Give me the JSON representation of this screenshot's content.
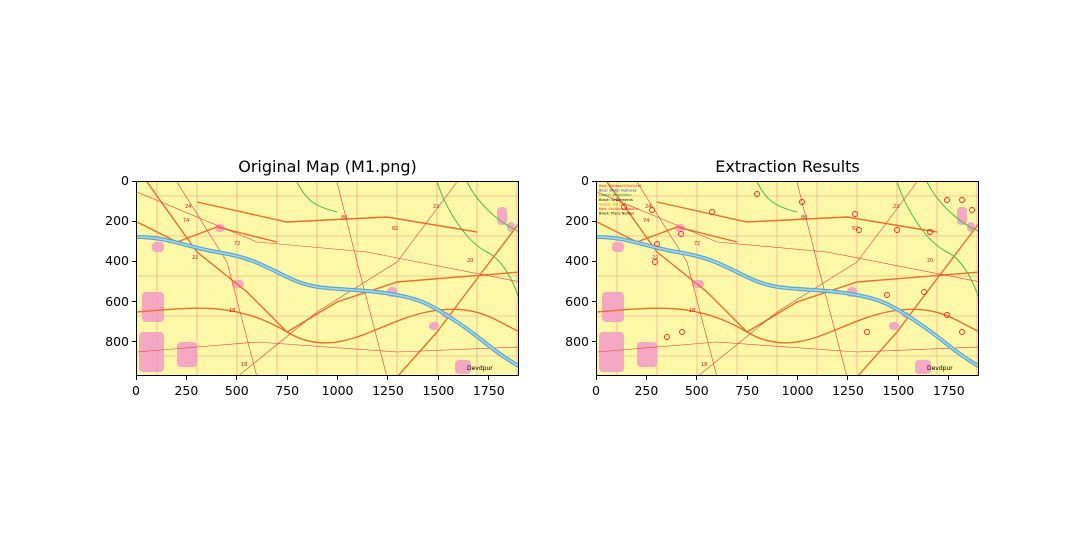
{
  "figure": {
    "panels": [
      {
        "title": "Original Map (M1.png)",
        "x_ticks": [
          "0",
          "250",
          "500",
          "750",
          "1000",
          "1250",
          "1500",
          "1750"
        ],
        "y_ticks": [
          "0",
          "200",
          "400",
          "600",
          "800"
        ],
        "legend": []
      },
      {
        "title": "Extraction Results",
        "x_ticks": [
          "0",
          "250",
          "500",
          "750",
          "1000",
          "1250",
          "1500",
          "1750"
        ],
        "y_ticks": [
          "0",
          "200",
          "400",
          "600",
          "800"
        ],
        "legend": [
          {
            "label": "Red: Transport Features",
            "color": "#ff2020"
          },
          {
            "label": "Blue: Water Features",
            "color": "#2030ff"
          },
          {
            "label": "Green: Vegetation",
            "color": "#10a010"
          },
          {
            "label": "Black: Settlements",
            "color": "#000000"
          },
          {
            "label": "Yellow: Terrain",
            "color": "#c0a000"
          },
          {
            "label": "Red: Grid/Annotations",
            "color": "#ff2020"
          },
          {
            "label": "Black: Place Names",
            "color": "#000000"
          }
        ]
      }
    ],
    "map_labels": [
      {
        "text": "24"
      },
      {
        "text": "74"
      },
      {
        "text": "72"
      },
      {
        "text": "22"
      },
      {
        "text": "80"
      },
      {
        "text": "82"
      },
      {
        "text": "22"
      },
      {
        "text": "20"
      },
      {
        "text": "18"
      },
      {
        "text": "18"
      },
      {
        "text": "Devdpur"
      }
    ],
    "colors": {
      "map_bg": "#fdf8a8",
      "river": "#5aa8c8",
      "road": "#e8702a",
      "grid": "#f07070",
      "settlement": "#f4a0c8",
      "vegetation": "#40c040",
      "detection": "#ff2020"
    }
  }
}
